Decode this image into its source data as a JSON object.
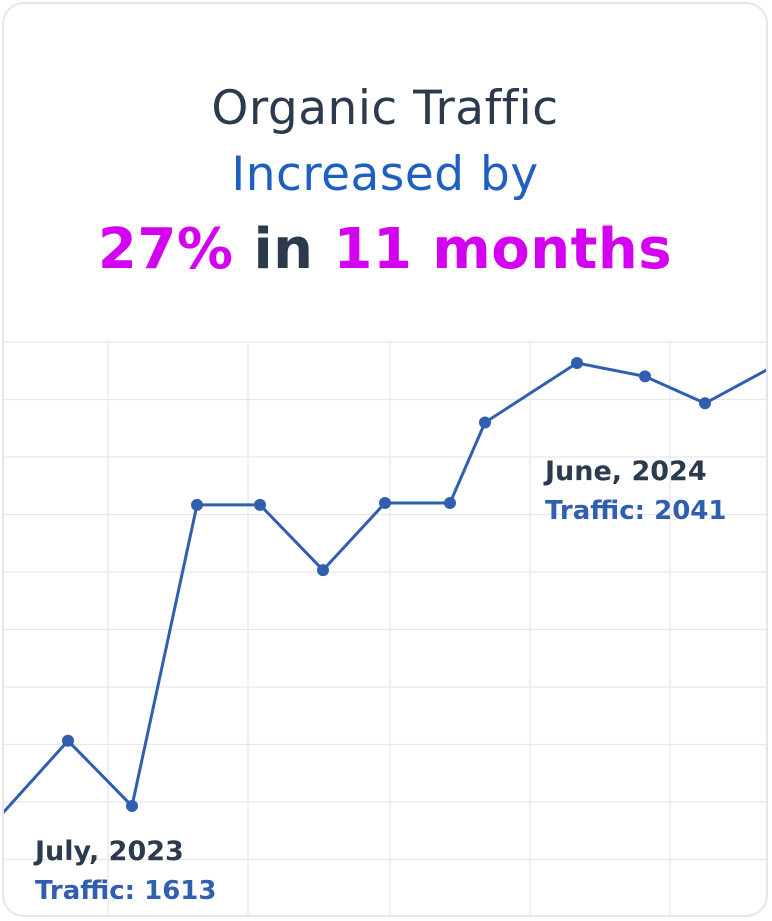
{
  "headline": {
    "line1": "Organic Traffic",
    "line2": "Increased by",
    "line3_percent": "27%",
    "line3_in": "in",
    "line3_duration": "11 months"
  },
  "colors": {
    "line": "#2f5fae",
    "grid": "#e6e8ec",
    "accent": "#d400f0",
    "dark_text": "#2b3a4d",
    "blue_text": "#1f5fbf"
  },
  "chart_data": {
    "type": "line",
    "title": "",
    "xlabel": "",
    "ylabel": "",
    "grid": true,
    "ylim": [
      1550,
      2100
    ],
    "series": [
      {
        "values": [
          1647,
          1613,
          1770,
          1770,
          1736,
          1771,
          1771,
          1813,
          1844,
          1837,
          1823
        ]
      }
    ],
    "annotations": [
      {
        "date": "July, 2023",
        "value_label": "Traffic: 1613"
      },
      {
        "date": "June, 2024",
        "value_label": "Traffic: 2041"
      }
    ]
  }
}
